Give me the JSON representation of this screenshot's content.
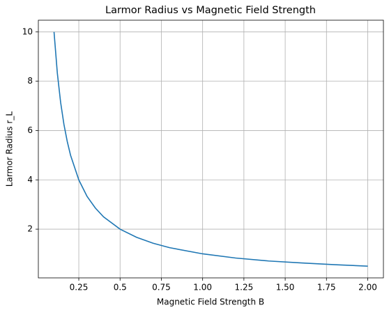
{
  "chart_data": {
    "type": "line",
    "title": "Larmor Radius vs Magnetic Field Strength",
    "x_label": "Magnetic Field Strength B",
    "y_label": "Larmor Radius r_L",
    "x": [
      0.1,
      0.12,
      0.14,
      0.16,
      0.18,
      0.2,
      0.25,
      0.3,
      0.35,
      0.4,
      0.5,
      0.6,
      0.7,
      0.8,
      1.0,
      1.2,
      1.4,
      1.6,
      1.8,
      2.0
    ],
    "series": [
      {
        "name": "r_L",
        "color": "#1f77b4",
        "values": [
          10,
          8.33,
          7.14,
          6.25,
          5.56,
          5,
          4,
          3.33,
          2.86,
          2.5,
          2,
          1.67,
          1.43,
          1.25,
          1,
          0.83,
          0.71,
          0.63,
          0.56,
          0.5
        ]
      }
    ],
    "xlim": [
      0.005,
      2.095
    ],
    "ylim": [
      0.025,
      10.475
    ],
    "xticks": [
      0.25,
      0.5,
      0.75,
      {
        "value": 1,
        "label": "1.00"
      },
      1.25,
      {
        "value": 1.5,
        "label": "1.50"
      },
      1.75,
      {
        "value": 2,
        "label": "2.00"
      }
    ],
    "yticks": [
      2,
      4,
      6,
      8,
      10
    ],
    "grid": true
  }
}
